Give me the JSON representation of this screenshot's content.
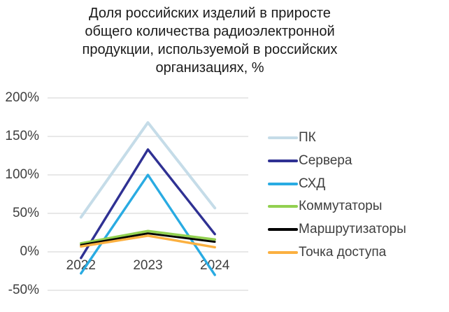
{
  "chart_data": {
    "type": "line",
    "title": "Доля российских изделий в приросте\nобщего количества радиоэлектронной\nпродукции, используемой в российских\nорганизациях, %",
    "categories": [
      "2022",
      "2023",
      "2024"
    ],
    "series": [
      {
        "name": "ПК",
        "color": "#C5DCE8",
        "values": [
          45,
          168,
          57
        ]
      },
      {
        "name": "Сервера",
        "color": "#2F3193",
        "values": [
          -8,
          133,
          23
        ]
      },
      {
        "name": "СХД",
        "color": "#29ABE2",
        "values": [
          -28,
          100,
          -30
        ]
      },
      {
        "name": "Коммутаторы",
        "color": "#92D050",
        "values": [
          11,
          27,
          16
        ]
      },
      {
        "name": "Маршрутизаторы",
        "color": "#000000",
        "values": [
          9,
          24,
          13
        ]
      },
      {
        "name": "Точка доступа",
        "color": "#FBB040",
        "values": [
          7,
          21,
          6
        ]
      }
    ],
    "xlabel": "",
    "ylabel": "",
    "ylim": [
      -50,
      200
    ],
    "ytick_step": 50,
    "ytick_labels": [
      "200%",
      "150%",
      "100%",
      "50%",
      "0%",
      "-50%"
    ],
    "grid": true,
    "grid_color": "#D9D9D9",
    "axis_text_color": "#3F3F3F",
    "title_color": "#1A1A1A",
    "legend_position": "right"
  }
}
